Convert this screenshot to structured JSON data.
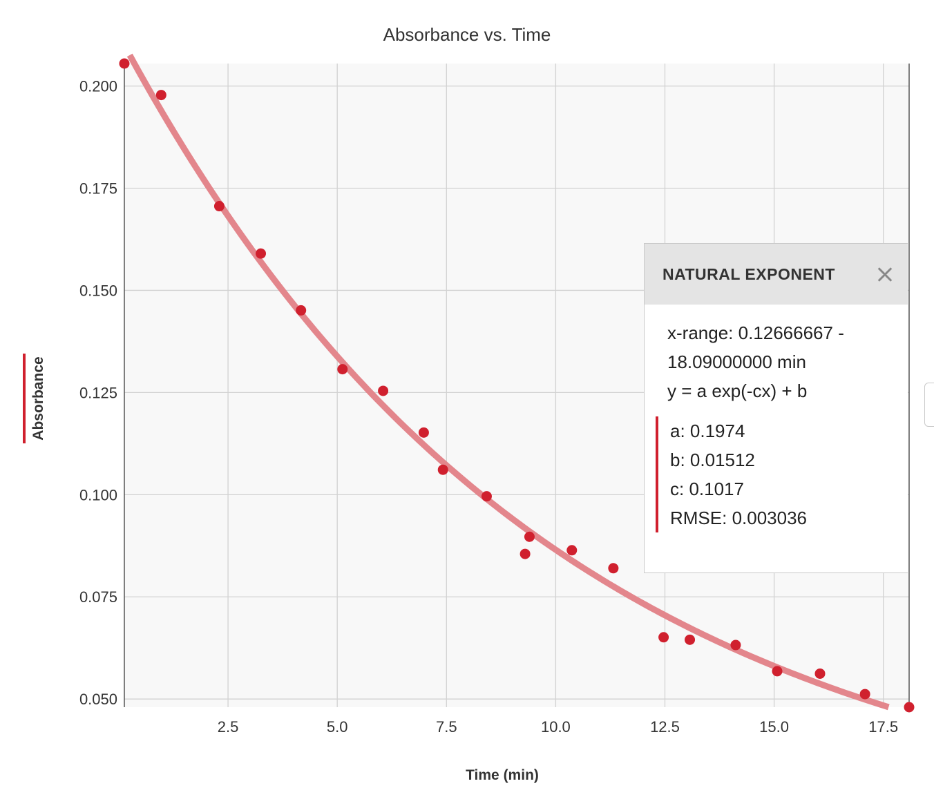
{
  "chart_data": {
    "type": "scatter",
    "title": "Absorbance vs. Time",
    "xlabel": "Time (min)",
    "ylabel": "Absorbance",
    "xlim": [
      0.12666667,
      18.09
    ],
    "ylim": [
      0.048,
      0.2055
    ],
    "x_ticks": [
      "2.5",
      "5.0",
      "7.5",
      "10.0",
      "12.5",
      "15.0",
      "17.5"
    ],
    "x_tick_values": [
      2.5,
      5.0,
      7.5,
      10.0,
      12.5,
      15.0,
      17.5
    ],
    "y_ticks": [
      "0.050",
      "0.075",
      "0.100",
      "0.125",
      "0.150",
      "0.175",
      "0.200"
    ],
    "y_tick_values": [
      0.05,
      0.075,
      0.1,
      0.125,
      0.15,
      0.175,
      0.2
    ],
    "grid": true,
    "series": [
      {
        "x": [
          0.12666667,
          0.97,
          2.3,
          3.25,
          4.17,
          5.12,
          6.05,
          6.98,
          7.42,
          8.42,
          9.3,
          9.4,
          10.37,
          11.32,
          12.47,
          13.07,
          14.12,
          15.07,
          16.05,
          17.08,
          18.09
        ],
        "y": [
          0.2055,
          0.1978,
          0.1706,
          0.159,
          0.1451,
          0.1307,
          0.1254,
          0.1152,
          0.1061,
          0.0996,
          0.0855,
          0.0897,
          0.0864,
          0.082,
          0.0651,
          0.0645,
          0.0632,
          0.0568,
          0.0562,
          0.0512,
          0.048
        ],
        "color": "#d0202e"
      }
    ],
    "fit": {
      "type": "natural exponent",
      "formula": "y = a exp(-cx) + b",
      "a": 0.1974,
      "b": 0.01512,
      "c": 0.1017,
      "color": "#e3868c"
    }
  },
  "fit_panel": {
    "title": "NATURAL EXPONENT",
    "x_range": "x-range: 0.12666667 -",
    "x_range_end": "18.09000000 min",
    "formula": "y = a exp(-cx) + b",
    "a": "a: 0.1974",
    "b": "b: 0.01512",
    "c": "c: 0.1017",
    "rmse": "RMSE: 0.003036"
  }
}
